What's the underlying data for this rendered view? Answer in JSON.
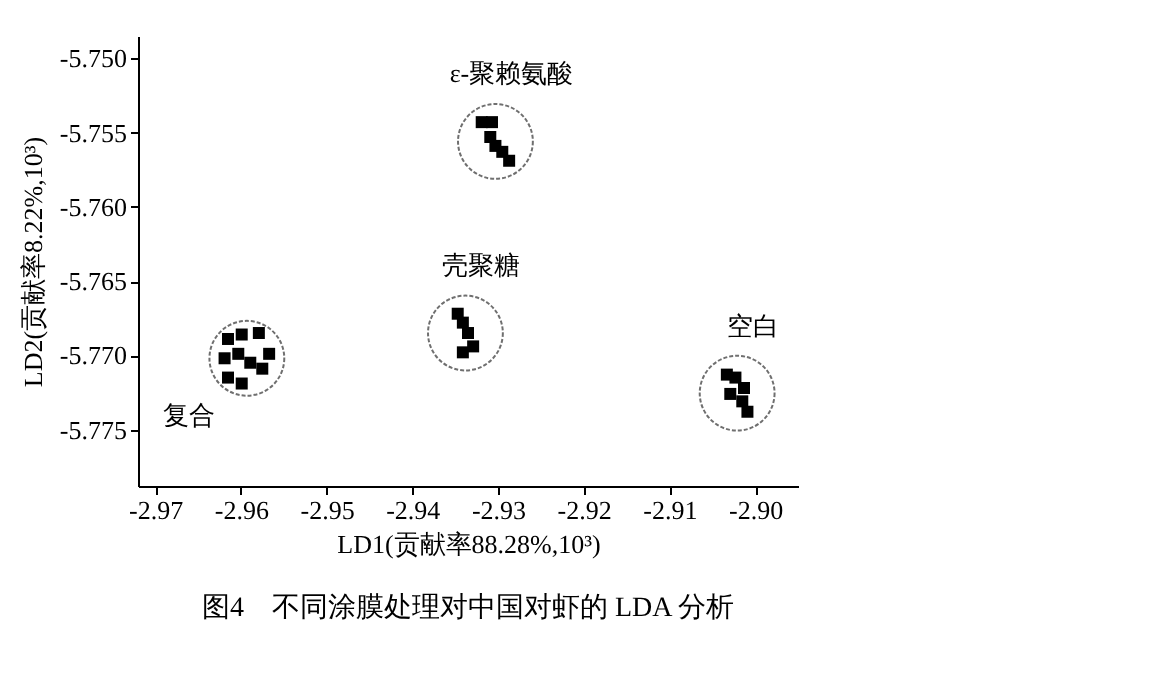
{
  "chart_data": {
    "type": "scatter",
    "title": "图4　不同涂膜处理对中国对虾的 LDA 分析",
    "xlabel": "LD1(贡献率88.28%,10³)",
    "ylabel": "LD2(贡献率8.22%,10³)",
    "xlim": [
      -2.972,
      -2.895
    ],
    "ylim": [
      -5.7788,
      -5.7485
    ],
    "xticks": [
      -2.97,
      -2.96,
      -2.95,
      -2.94,
      -2.93,
      -2.92,
      -2.91,
      {
        "value": -2.9,
        "label": "-2.90"
      }
    ],
    "yticks": [
      {
        "value": -5.75,
        "label": "-5.750"
      },
      -5.755,
      {
        "value": -5.76,
        "label": "-5.760"
      },
      -5.765,
      {
        "value": -5.77,
        "label": "-5.770"
      },
      -5.775
    ],
    "marker": "square",
    "grid": false,
    "legend": false,
    "series": [
      {
        "name": "ε-聚赖氨酸",
        "color": "#000000",
        "x": [
          -2.9319,
          -2.9307,
          -2.9309,
          -2.9303,
          -2.9295,
          -2.9287
        ],
        "values": [
          -5.7543,
          -5.7543,
          -5.7553,
          -5.7559,
          -5.7563,
          -5.7569
        ]
      },
      {
        "name": "壳聚糖",
        "color": "#000000",
        "x": [
          -2.9347,
          -2.9341,
          -2.9335,
          -2.9329,
          -2.9341
        ],
        "values": [
          -5.7672,
          -5.7678,
          -5.7685,
          -5.7694,
          -5.7698
        ]
      },
      {
        "name": "空白",
        "color": "#000000",
        "x": [
          -2.9033,
          -2.9023,
          -2.9029,
          -2.9013,
          -2.9009,
          -2.9015
        ],
        "values": [
          -5.7713,
          -5.7715,
          -5.7726,
          -5.7722,
          -5.7738,
          -5.7731
        ]
      },
      {
        "name": "复合",
        "color": "#000000",
        "x": [
          -2.9615,
          -2.9599,
          -2.9579,
          -2.9619,
          -2.9603,
          -2.9589,
          -2.9615,
          -2.9599,
          -2.9575,
          -2.9567
        ],
        "values": [
          -5.7689,
          -5.7686,
          -5.7685,
          -5.7702,
          -5.7699,
          -5.7705,
          -5.7715,
          -5.7719,
          -5.7709,
          -5.7699
        ]
      }
    ]
  }
}
